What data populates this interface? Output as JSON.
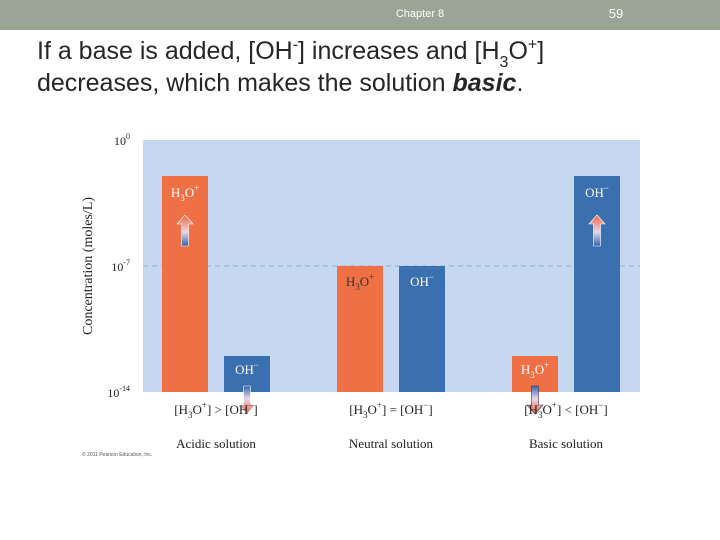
{
  "header": {
    "chapter": "Chapter 8",
    "page": "59"
  },
  "heading": {
    "p1": "If a base is added, [OH",
    "sup1": "-",
    "p2": "] increases and [H",
    "sub1": "3",
    "p3": "O",
    "sup2": "+",
    "p4": "]",
    "p5": "decreases, which makes the solution ",
    "em": "basic",
    "p6": "."
  },
  "chart_data": {
    "type": "bar",
    "ylabel": "Concentration (moles/L)",
    "yscale": "log",
    "ylim": [
      1e-14,
      1
    ],
    "ytick_labels": [
      {
        "base": "10",
        "exp": "0",
        "value": 1
      },
      {
        "base": "10",
        "exp": "-7",
        "value": 1e-07
      },
      {
        "base": "10",
        "exp": "-14",
        "value": 1e-14
      }
    ],
    "reference_line": 1e-07,
    "groups": [
      {
        "name": "Acidic solution",
        "relation": {
          "pre": "[H",
          "sub": "3",
          "mid": "O",
          "sup": "+",
          "post": "] > [OH",
          "sup2": "−",
          "end": "]"
        },
        "bars": [
          {
            "species": "H3O+",
            "value": 0.01,
            "color": "#f07045",
            "arrow": "up"
          },
          {
            "species": "OH-",
            "value": 1e-12,
            "color": "#3a6fb0",
            "arrow": "down"
          }
        ]
      },
      {
        "name": "Neutral solution",
        "relation": {
          "pre": "[H",
          "sub": "3",
          "mid": "O",
          "sup": "+",
          "post": "] = [OH",
          "sup2": "−",
          "end": "]"
        },
        "bars": [
          {
            "species": "H3O+",
            "value": 1e-07,
            "color": "#f07045",
            "arrow": ""
          },
          {
            "species": "OH-",
            "value": 1e-07,
            "color": "#3a6fb0",
            "arrow": ""
          }
        ]
      },
      {
        "name": "Basic solution",
        "relation": {
          "pre": "[H",
          "sub": "3",
          "mid": "O",
          "sup": "+",
          "post": "] < [OH",
          "sup2": "−",
          "end": "]"
        },
        "bars": [
          {
            "species": "H3O+",
            "value": 1e-12,
            "color": "#f07045",
            "arrow": "down"
          },
          {
            "species": "OH-",
            "value": 0.01,
            "color": "#3a6fb0",
            "arrow": "up"
          }
        ]
      }
    ],
    "species_labels": {
      "H3O+": {
        "a": "H",
        "sub": "3",
        "b": "O",
        "sup": "+"
      },
      "OH-": {
        "a": "OH",
        "sub": "",
        "b": "",
        "sup": "−"
      }
    },
    "background": "#c5d8ef"
  },
  "copyright": "© 2011 Pearson Education, Inc."
}
